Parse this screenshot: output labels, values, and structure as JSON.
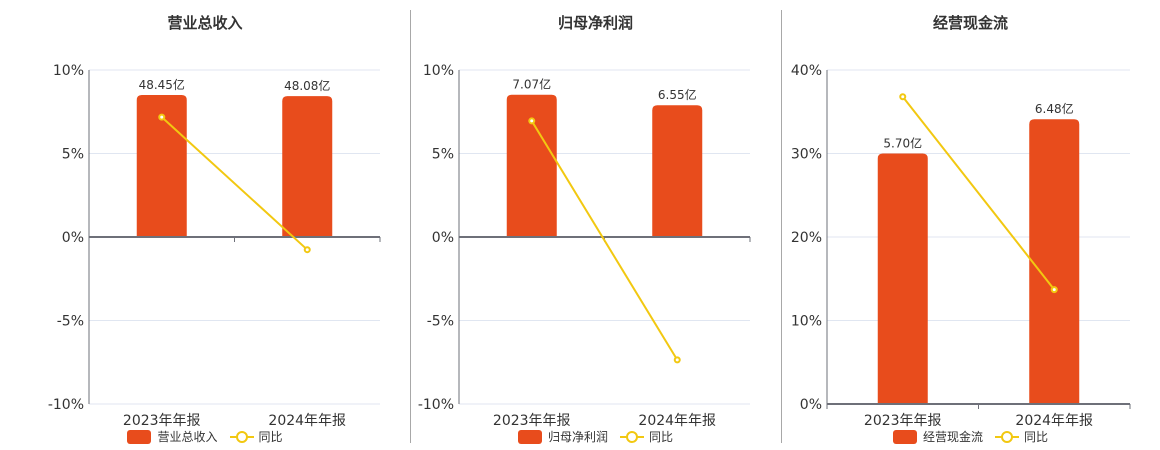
{
  "colors": {
    "bar": "#E84C1C",
    "line": "#F2C811",
    "text": "#333333",
    "axis": "#6E7079",
    "grid": "#E0E6F1"
  },
  "chart_data": [
    {
      "type": "bar",
      "title": "营业总收入",
      "categories": [
        "2023年年报",
        "2024年年报"
      ],
      "series": [
        {
          "name": "营业总收入",
          "type": "bar",
          "values": [
            48.45,
            48.08
          ],
          "labels": [
            "48.45亿",
            "48.08亿"
          ],
          "unit": "亿"
        },
        {
          "name": "同比",
          "type": "line",
          "values": [
            7.18,
            -0.76
          ],
          "unit": "%"
        }
      ],
      "y_ticks": [
        "10%",
        "5%",
        "0%",
        "-5%",
        "-10%"
      ],
      "y_tick_values": [
        10,
        5,
        0,
        -5,
        -10
      ],
      "ylim": [
        -10,
        10
      ],
      "bar_scale_max": 57,
      "legend": {
        "bar": "营业总收入",
        "line": "同比",
        "position": "bottom"
      },
      "grid": true
    },
    {
      "type": "bar",
      "title": "归母净利润",
      "categories": [
        "2023年年报",
        "2024年年报"
      ],
      "series": [
        {
          "name": "归母净利润",
          "type": "bar",
          "values": [
            7.07,
            6.55
          ],
          "labels": [
            "7.07亿",
            "6.55亿"
          ],
          "unit": "亿"
        },
        {
          "name": "同比",
          "type": "line",
          "values": [
            6.95,
            -7.36
          ],
          "unit": "%"
        }
      ],
      "y_ticks": [
        "10%",
        "5%",
        "0%",
        "-5%",
        "-10%"
      ],
      "y_tick_values": [
        10,
        5,
        0,
        -5,
        -10
      ],
      "ylim": [
        -10,
        10
      ],
      "bar_scale_max": 8.3,
      "legend": {
        "bar": "归母净利润",
        "line": "同比",
        "position": "bottom"
      },
      "grid": true
    },
    {
      "type": "bar",
      "title": "经营现金流",
      "categories": [
        "2023年年报",
        "2024年年报"
      ],
      "series": [
        {
          "name": "经营现金流",
          "type": "bar",
          "values": [
            5.7,
            6.48
          ],
          "labels": [
            "5.70亿",
            "6.48亿"
          ],
          "unit": "亿"
        },
        {
          "name": "同比",
          "type": "line",
          "values": [
            36.8,
            13.7
          ],
          "unit": "%"
        }
      ],
      "y_ticks": [
        "40%",
        "30%",
        "20%",
        "10%",
        "0%"
      ],
      "y_tick_values": [
        40,
        30,
        20,
        10,
        0
      ],
      "ylim": [
        0,
        40
      ],
      "bar_scale_max": 7.6,
      "legend": {
        "bar": "经营现金流",
        "line": "同比",
        "position": "bottom"
      },
      "grid": true
    }
  ]
}
